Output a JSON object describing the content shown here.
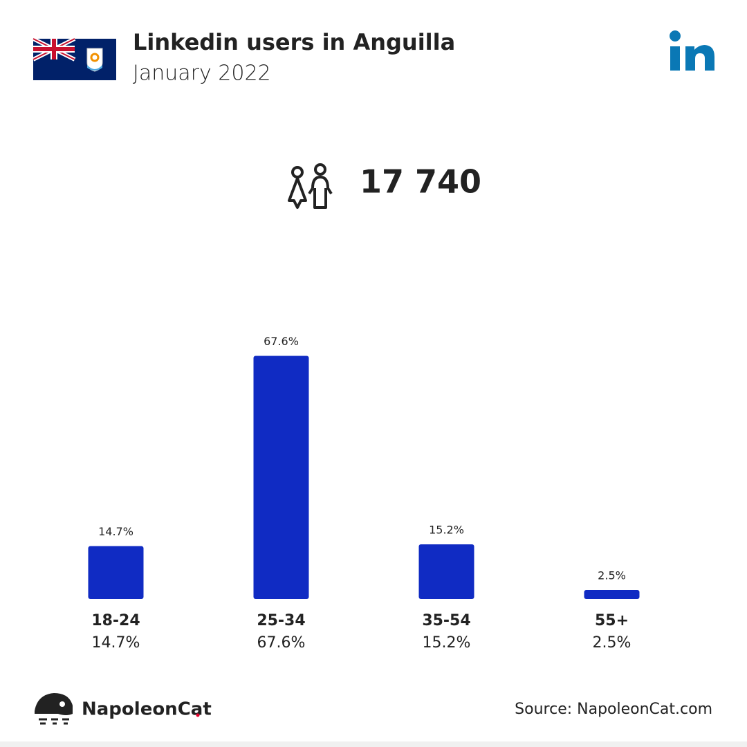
{
  "chart_data": {
    "type": "bar",
    "title": "Linkedin users in Anguilla",
    "subtitle": "January 2022",
    "total_users": "17 740",
    "categories": [
      "18-24",
      "25-34",
      "35-54",
      "55+"
    ],
    "values": [
      14.7,
      67.6,
      15.2,
      2.5
    ],
    "value_labels": [
      "14.7%",
      "67.6%",
      "15.2%",
      "2.5%"
    ],
    "color": "#102bc3",
    "brand": "NapoleonCat",
    "source": "Source: NapoleonCat.com"
  }
}
